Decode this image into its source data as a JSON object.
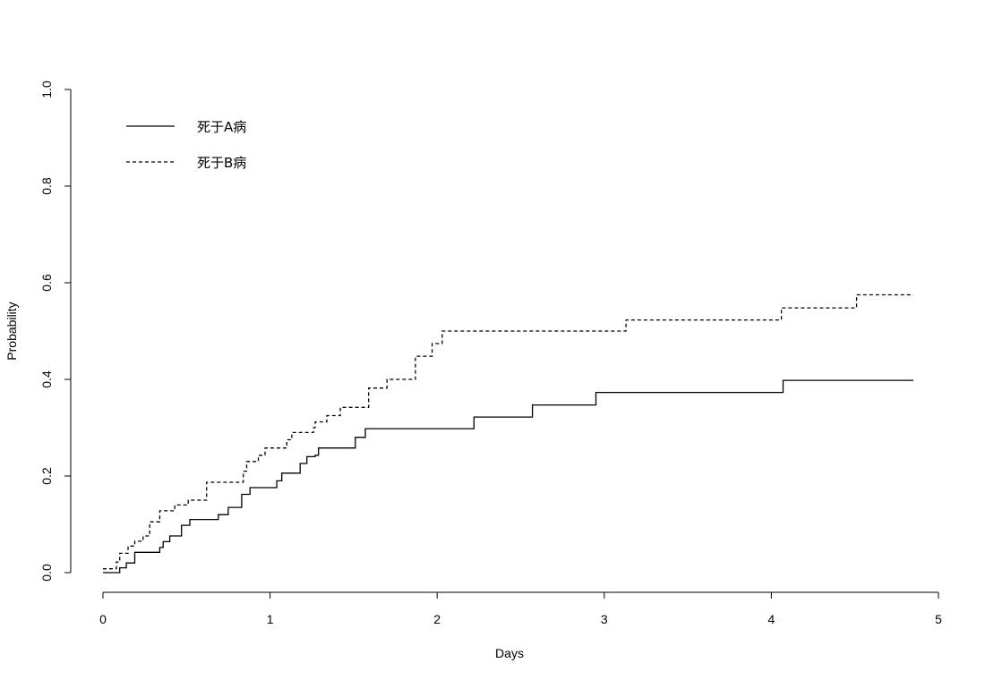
{
  "chart_data": {
    "type": "line",
    "subtype": "step",
    "title": "",
    "xlabel": "Days",
    "ylabel": "Probability",
    "xlim": [
      0,
      5
    ],
    "ylim": [
      0,
      1
    ],
    "xticks": [
      0,
      1,
      2,
      3,
      4,
      5
    ],
    "yticks": [
      0.0,
      0.2,
      0.4,
      0.6,
      0.8,
      1.0
    ],
    "ytick_labels": [
      "0.0",
      "0.2",
      "0.4",
      "0.6",
      "0.8",
      "1.0"
    ],
    "grid": false,
    "legend_position": "top-left",
    "series": [
      {
        "name": "死于A病",
        "line_style": "solid",
        "color": "#000000",
        "x": [
          0,
          0.1,
          0.14,
          0.19,
          0.34,
          0.36,
          0.4,
          0.47,
          0.52,
          0.69,
          0.75,
          0.83,
          0.88,
          1.04,
          1.07,
          1.18,
          1.22,
          1.27,
          1.29,
          1.51,
          1.54,
          1.57,
          2.22,
          2.57,
          2.95,
          4.07,
          4.85
        ],
        "y": [
          0,
          0.01,
          0.02,
          0.042,
          0.052,
          0.064,
          0.076,
          0.098,
          0.11,
          0.12,
          0.135,
          0.162,
          0.176,
          0.19,
          0.206,
          0.226,
          0.24,
          0.243,
          0.258,
          0.28,
          0.28,
          0.298,
          0.322,
          0.347,
          0.373,
          0.398,
          0.398
        ]
      },
      {
        "name": "死于B病",
        "line_style": "dashed",
        "color": "#000000",
        "x": [
          0,
          0.08,
          0.1,
          0.15,
          0.19,
          0.24,
          0.28,
          0.34,
          0.43,
          0.51,
          0.62,
          0.84,
          0.86,
          0.93,
          0.97,
          1.1,
          1.13,
          1.26,
          1.27,
          1.34,
          1.42,
          1.59,
          1.7,
          1.87,
          1.97,
          2.03,
          3.13,
          4.06,
          4.51,
          4.85
        ],
        "y": [
          0.008,
          0.022,
          0.04,
          0.055,
          0.065,
          0.076,
          0.105,
          0.128,
          0.14,
          0.15,
          0.187,
          0.21,
          0.23,
          0.243,
          0.258,
          0.275,
          0.29,
          0.3,
          0.312,
          0.325,
          0.342,
          0.382,
          0.4,
          0.448,
          0.474,
          0.5,
          0.523,
          0.548,
          0.575,
          0.575
        ]
      }
    ]
  }
}
